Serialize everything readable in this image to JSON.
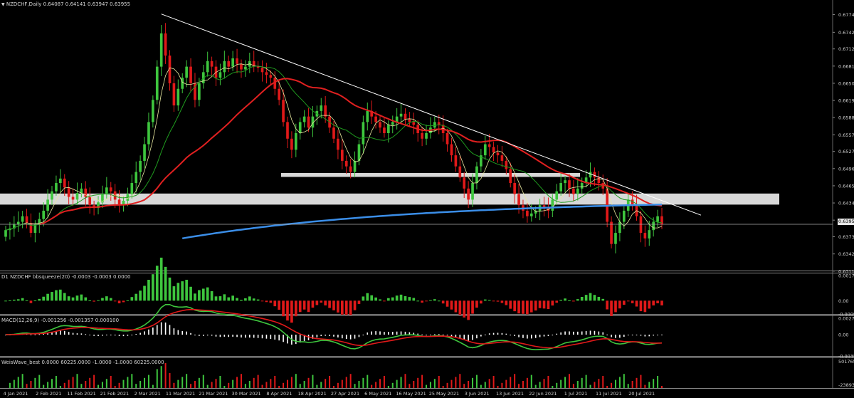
{
  "header": {
    "main": "NZDCHF,Daily  0.64087 0.64141 0.63947 0.63955",
    "squeeze": "D1 NZDCHF bbsqueeze(20) -0.0003 -0.0003 0.0000",
    "macd": "MACD(12,26,9) -0.001256 -0.001357 0.000100",
    "weis": "WeisWave_best 0.0000 60225.0000 -1.0000 -1.0000 60225.0000"
  },
  "current_price": "0.63955",
  "colors": {
    "bull": "#3ec63e",
    "bear": "#e01919",
    "ma_fast": "#e8e8a0",
    "ma_mid": "#1f9a1f",
    "ma_slow": "#e02020",
    "ma_200": "#3b8ee8",
    "zone": "#d8d8d8",
    "grid": "#666666"
  },
  "chart_data": [
    {
      "type": "candlestick",
      "symbol": "NZDCHF",
      "timeframe": "Daily",
      "ylim": [
        0.6312,
        0.679
      ],
      "y_ticks": [
        "0.6774",
        "0.6742",
        "0.6712",
        "0.6681",
        "0.6650",
        "0.6619",
        "0.6588",
        "0.6557",
        "0.6527",
        "0.6496",
        "0.6465",
        "0.6434",
        "0.6403",
        "0.6373",
        "0.6342",
        "0.6311"
      ],
      "x_ticks": [
        "4 Jan 2021",
        "2 Feb 2021",
        "11 Feb 2021",
        "21 Feb 2021",
        "2 Mar 2021",
        "11 Mar 2021",
        "21 Mar 2021",
        "30 Mar 2021",
        "8 Apr 2021",
        "18 Apr 2021",
        "27 Apr 2021",
        "6 May 2021",
        "16 May 2021",
        "25 May 2021",
        "3 Jun 2021",
        "13 Jun 2021",
        "22 Jun 2021",
        "1 Jul 2021",
        "11 Jul 2021",
        "20 Jul 2021"
      ],
      "closes": [
        0.6385,
        0.6388,
        0.6395,
        0.64,
        0.641,
        0.6398,
        0.638,
        0.6395,
        0.6405,
        0.642,
        0.644,
        0.6455,
        0.647,
        0.6478,
        0.6462,
        0.6445,
        0.644,
        0.6452,
        0.646,
        0.6445,
        0.643,
        0.6425,
        0.6435,
        0.645,
        0.6462,
        0.6455,
        0.644,
        0.643,
        0.6438,
        0.645,
        0.647,
        0.649,
        0.651,
        0.654,
        0.658,
        0.662,
        0.668,
        0.674,
        0.67,
        0.665,
        0.661,
        0.664,
        0.666,
        0.668,
        0.665,
        0.662,
        0.665,
        0.667,
        0.669,
        0.668,
        0.666,
        0.667,
        0.669,
        0.668,
        0.6695,
        0.6685,
        0.6675,
        0.668,
        0.669,
        0.668,
        0.6678,
        0.667,
        0.6665,
        0.666,
        0.664,
        0.662,
        0.658,
        0.655,
        0.653,
        0.656,
        0.658,
        0.659,
        0.657,
        0.659,
        0.66,
        0.661,
        0.659,
        0.657,
        0.655,
        0.653,
        0.651,
        0.65,
        0.649,
        0.651,
        0.654,
        0.658,
        0.66,
        0.659,
        0.658,
        0.657,
        0.656,
        0.6575,
        0.658,
        0.659,
        0.6595,
        0.6585,
        0.658,
        0.6575,
        0.656,
        0.655,
        0.656,
        0.657,
        0.658,
        0.6575,
        0.656,
        0.654,
        0.652,
        0.65,
        0.648,
        0.646,
        0.644,
        0.647,
        0.65,
        0.652,
        0.654,
        0.6535,
        0.6525,
        0.652,
        0.651,
        0.6495,
        0.647,
        0.645,
        0.643,
        0.642,
        0.641,
        0.6415,
        0.642,
        0.643,
        0.6425,
        0.642,
        0.644,
        0.6455,
        0.647,
        0.6475,
        0.646,
        0.645,
        0.646,
        0.647,
        0.648,
        0.649,
        0.648,
        0.647,
        0.646,
        0.64,
        0.636,
        0.638,
        0.64,
        0.642,
        0.644,
        0.643,
        0.641,
        0.638,
        0.637,
        0.6385,
        0.64,
        0.641,
        0.6395
      ]
    },
    {
      "type": "histogram",
      "name": "bbsqueeze(20)",
      "y_ticks": [
        "0.0017",
        "0.00",
        "-0.0009"
      ],
      "ylim": [
        -0.0009,
        0.0017
      ]
    },
    {
      "type": "line",
      "name": "MACD(12,26,9)",
      "y_ticks": [
        "0.0027",
        "0.00",
        "-0.0035"
      ],
      "ylim": [
        -0.0035,
        0.0027
      ]
    },
    {
      "type": "bar",
      "name": "WeisWave_best",
      "y_ticks": [
        "501765",
        "0",
        "-23893"
      ]
    }
  ]
}
